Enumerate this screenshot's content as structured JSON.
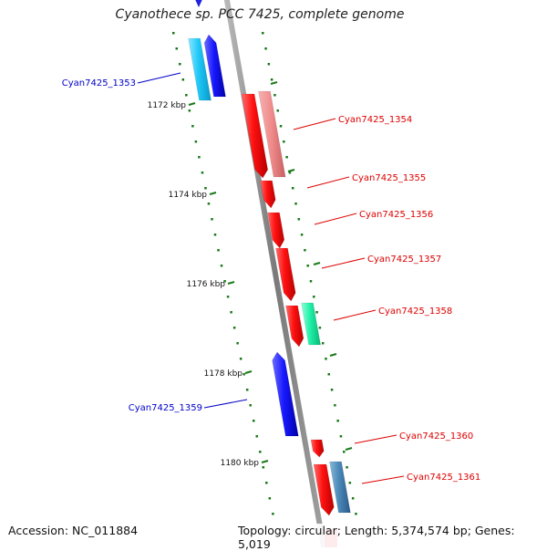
{
  "title": "Cyanothece sp. PCC 7425, complete genome",
  "footer": {
    "accession": "Accession: NC_011884",
    "summary": "Topology: circular; Length: 5,374,574 bp; Genes: 5,019"
  },
  "colors": {
    "backbone": "#8a8a8a",
    "tick": "#1a7a1a",
    "forward_label": "#0000c8",
    "reverse_label": "#dd0000"
  },
  "ticks": [
    {
      "kbp": 1172,
      "label": "1172 kbp"
    },
    {
      "kbp": 1174,
      "label": "1174 kbp"
    },
    {
      "kbp": 1176,
      "label": "1176 kbp"
    },
    {
      "kbp": 1178,
      "label": "1178 kbp"
    },
    {
      "kbp": 1180,
      "label": "1180 kbp"
    }
  ],
  "genes": [
    {
      "label": "Cyan7425_1353",
      "strand": "forward",
      "color": "#2040ff"
    },
    {
      "label": "Cyan7425_1354",
      "strand": "reverse",
      "color": "#ee1111"
    },
    {
      "label": "Cyan7425_1355",
      "strand": "reverse",
      "color": "#ee1111"
    },
    {
      "label": "Cyan7425_1356",
      "strand": "reverse",
      "color": "#ee1111"
    },
    {
      "label": "Cyan7425_1357",
      "strand": "reverse",
      "color": "#ee1111"
    },
    {
      "label": "Cyan7425_1358",
      "strand": "reverse",
      "color": "#ee1111"
    },
    {
      "label": "Cyan7425_1359",
      "strand": "forward",
      "color": "#2020e0"
    },
    {
      "label": "Cyan7425_1360",
      "strand": "reverse",
      "color": "#ee1111"
    },
    {
      "label": "Cyan7425_1361",
      "strand": "reverse",
      "color": "#ee1111"
    }
  ]
}
